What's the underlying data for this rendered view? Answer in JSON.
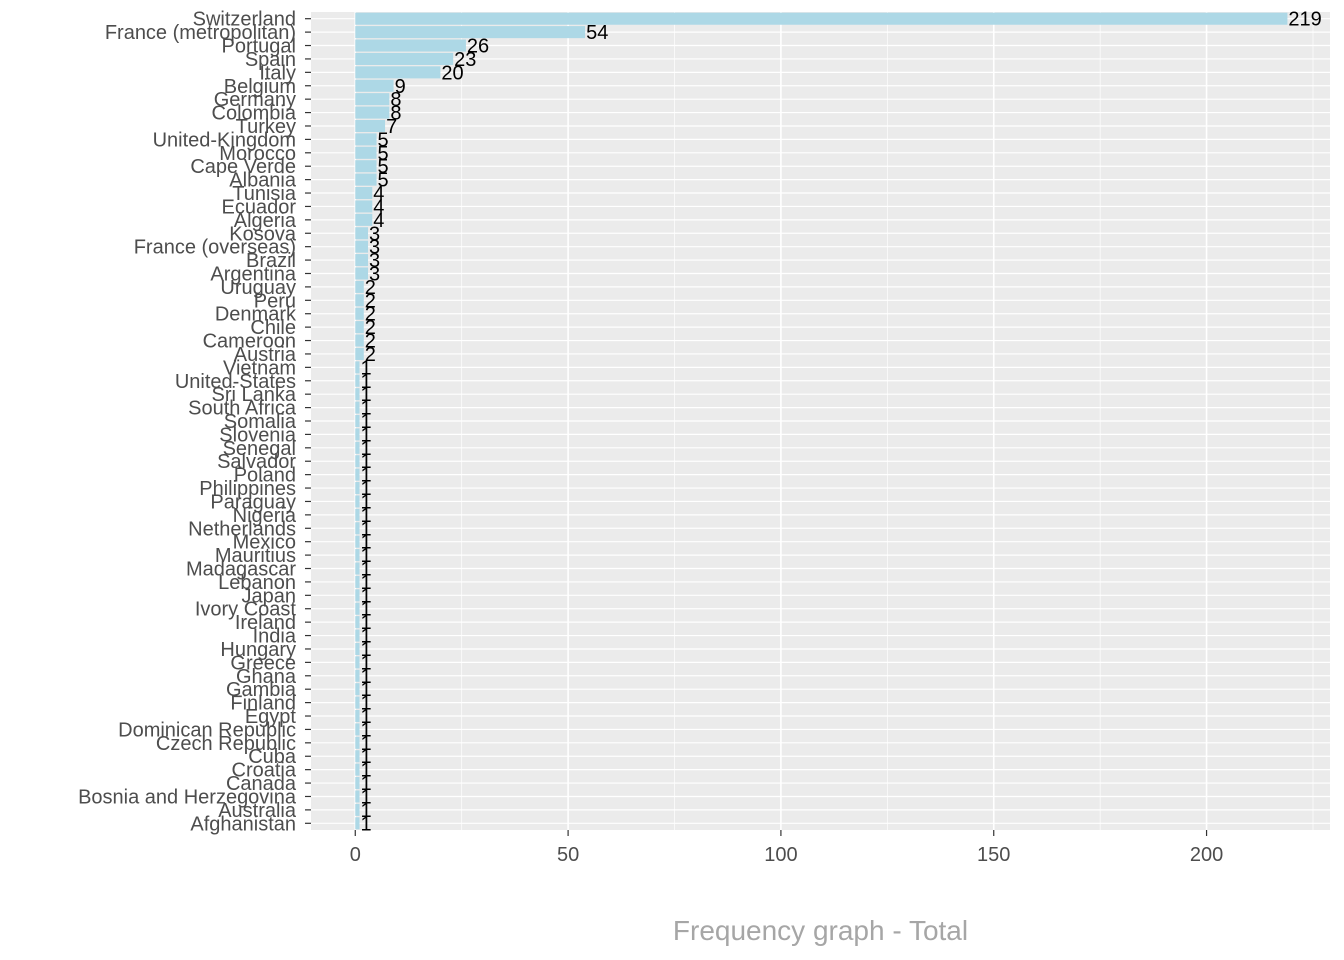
{
  "chart_data": {
    "type": "bar",
    "orientation": "horizontal",
    "title": "",
    "xlabel": "Frequency graph - Total",
    "ylabel": "",
    "xlim": [
      0,
      230
    ],
    "x_ticks": [
      0,
      50,
      100,
      150,
      200
    ],
    "grid": true,
    "legend": "none",
    "bar_color": "#add8e6",
    "panel_color": "#ebebeb",
    "grid_color": "#ffffff",
    "categories": [
      "Switzerland",
      "France (metropolitan)",
      "Portugal",
      "Spain",
      "Italy",
      "Belgium",
      "Germany",
      "Colombia",
      "Turkey",
      "United-Kingdom",
      "Morocco",
      "Cape Verde",
      "Albania",
      "Tunisia",
      "Ecuador",
      "Algeria",
      "Kosova",
      "France (overseas)",
      "Brazil",
      "Argentina",
      "Uruguay",
      "Peru",
      "Denmark",
      "Chile",
      "Cameroon",
      "Austria",
      "Vietnam",
      "United-States",
      "Sri Lanka",
      "South Africa",
      "Somalia",
      "Slovenia",
      "Senegal",
      "Salvador",
      "Poland",
      "Philippines",
      "Paraguay",
      "Nigeria",
      "Netherlands",
      "Mexico",
      "Mauritius",
      "Madagascar",
      "Lebanon",
      "Japan",
      "Ivory Coast",
      "Ireland",
      "India",
      "Hungary",
      "Greece",
      "Ghana",
      "Gambia",
      "Finland",
      "Egypt",
      "Dominican Republic",
      "Czech Republic",
      "Cuba",
      "Croatia",
      "Canada",
      "Bosnia and Herzegovina",
      "Australia",
      "Afghanistan"
    ],
    "values": [
      219,
      54,
      26,
      23,
      20,
      9,
      8,
      8,
      7,
      5,
      5,
      5,
      5,
      4,
      4,
      4,
      3,
      3,
      3,
      3,
      2,
      2,
      2,
      2,
      2,
      2,
      1,
      1,
      1,
      1,
      1,
      1,
      1,
      1,
      1,
      1,
      1,
      1,
      1,
      1,
      1,
      1,
      1,
      1,
      1,
      1,
      1,
      1,
      1,
      1,
      1,
      1,
      1,
      1,
      1,
      1,
      1,
      1,
      1,
      1,
      1
    ]
  }
}
